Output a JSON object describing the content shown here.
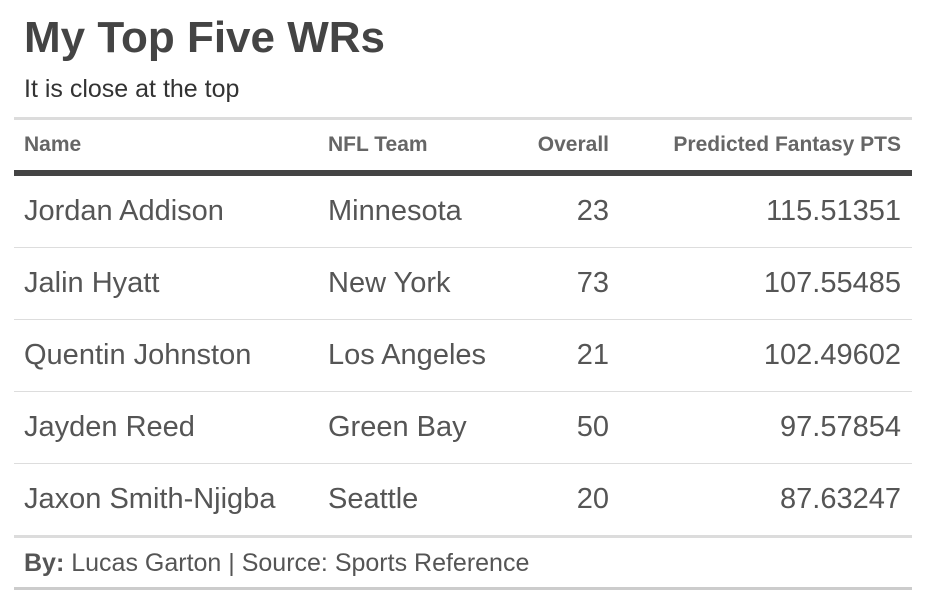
{
  "chart_data": {
    "type": "table",
    "title": "My Top Five WRs",
    "subtitle": "It is close at the top",
    "columns": [
      "Name",
      "NFL Team",
      "Overall",
      "Predicted Fantasy PTS"
    ],
    "rows": [
      [
        "Jordan Addison",
        "Minnesota",
        "23",
        "115.51351"
      ],
      [
        "Jalin Hyatt",
        "New York",
        "73",
        "107.55485"
      ],
      [
        "Quentin Johnston",
        "Los Angeles",
        "21",
        "102.49602"
      ],
      [
        "Jayden Reed",
        "Green Bay",
        "50",
        "97.57854"
      ],
      [
        "Jaxon Smith-Njigba",
        "Seattle",
        "20",
        "87.63247"
      ]
    ],
    "caption_label": "By:",
    "caption_text": " Lucas Garton | Source: Sports Reference"
  }
}
